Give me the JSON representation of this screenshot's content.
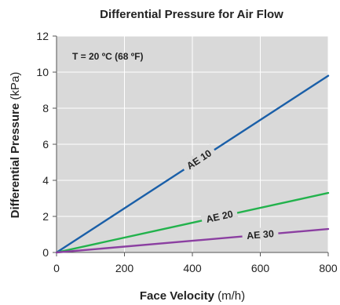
{
  "chart_data": {
    "type": "line",
    "title": "Differential Pressure for Air Flow",
    "xlabel": {
      "bold": "Face Velocity",
      "unit": " (m/h)"
    },
    "ylabel": {
      "bold": "Differential Pressure",
      "unit": " (kPa)"
    },
    "xlim": [
      0,
      800
    ],
    "ylim": [
      0,
      12
    ],
    "xticks": [
      0,
      200,
      400,
      600,
      800
    ],
    "yticks": [
      0,
      2,
      4,
      6,
      8,
      10,
      12
    ],
    "grid": true,
    "background": "#d9d9d9",
    "annotation": "T = 20 ºC (68 ºF)",
    "series": [
      {
        "name": "AE 10",
        "color": "#1a5fa8",
        "x": [
          0,
          800
        ],
        "y": [
          0,
          9.8
        ],
        "label_at_x": 420
      },
      {
        "name": "AE 20",
        "color": "#22b24c",
        "x": [
          0,
          800
        ],
        "y": [
          0,
          3.3
        ],
        "label_at_x": 480
      },
      {
        "name": "AE 30",
        "color": "#8b3fa1",
        "x": [
          0,
          800
        ],
        "y": [
          0,
          1.3
        ],
        "label_at_x": 600
      }
    ]
  }
}
